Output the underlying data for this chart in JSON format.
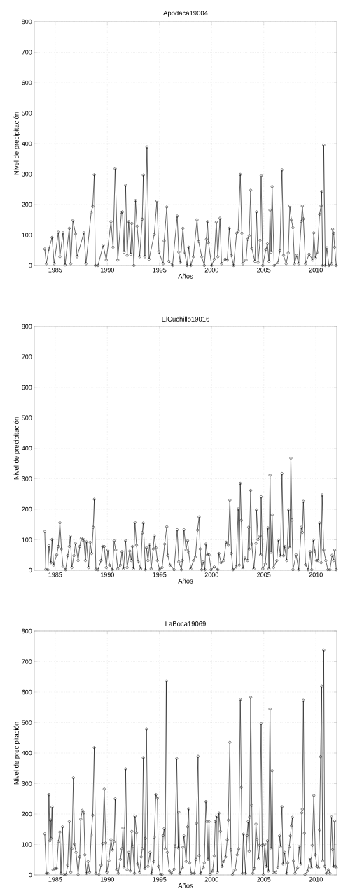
{
  "chart_data": [
    {
      "type": "line",
      "title": "Apodaca19004",
      "xlabel": "Años",
      "ylabel": "Nivel de precipitación",
      "color": "#000000",
      "marker": "circle",
      "line_style": "solid",
      "grid": true,
      "xlim": [
        1983,
        2012
      ],
      "ylim": [
        0,
        800
      ],
      "xticks": [
        1985,
        1990,
        1995,
        2000,
        2005,
        2010
      ],
      "yticks": [
        0,
        100,
        200,
        300,
        400,
        500,
        600,
        700,
        800
      ],
      "x": [
        1984.0,
        1984.15,
        1984.4,
        1984.7,
        1984.9,
        1985.3,
        1985.45,
        1985.75,
        1985.95,
        1986.35,
        1986.5,
        1986.7,
        1986.95,
        1987.1,
        1987.75,
        1987.95,
        1988.45,
        1988.6,
        1988.75,
        1988.85,
        1989.1,
        1989.6,
        1989.9,
        1990.35,
        1990.55,
        1990.75,
        1991.0,
        1991.35,
        1991.45,
        1991.6,
        1991.75,
        1991.9,
        1992.05,
        1992.25,
        1992.35,
        1992.55,
        1992.7,
        1992.85,
        1993.1,
        1993.35,
        1993.45,
        1993.6,
        1993.8,
        1994.0,
        1994.5,
        1994.75,
        1994.95,
        1995.35,
        1995.45,
        1995.7,
        1995.9,
        1996.25,
        1996.7,
        1996.85,
        1997.0,
        1997.25,
        1997.4,
        1997.65,
        1997.8,
        1998.0,
        1998.25,
        1998.6,
        1998.75,
        1999.05,
        1999.3,
        1999.5,
        1999.6,
        1999.7,
        2000.0,
        2000.25,
        2000.45,
        2000.6,
        2000.8,
        2000.95,
        2001.3,
        2001.5,
        2001.7,
        2001.9,
        2002.1,
        2002.4,
        2002.55,
        2002.75,
        2002.9,
        2003.0,
        2003.3,
        2003.45,
        2003.6,
        2003.75,
        2003.85,
        2004.15,
        2004.3,
        2004.45,
        2004.65,
        2004.75,
        2004.9,
        2005.2,
        2005.35,
        2005.5,
        2005.6,
        2005.7,
        2005.8,
        2006.0,
        2006.35,
        2006.55,
        2006.75,
        2006.9,
        2007.15,
        2007.35,
        2007.5,
        2007.65,
        2007.8,
        2007.95,
        2008.15,
        2008.35,
        2008.6,
        2008.7,
        2008.8,
        2009.0,
        2009.35,
        2009.7,
        2009.8,
        2009.95,
        2010.15,
        2010.35,
        2010.5,
        2010.55,
        2010.65,
        2010.75,
        2010.9,
        2011.05,
        2011.25,
        2011.5,
        2011.6,
        2011.7,
        2011.8,
        2011.95
      ],
      "values": [
        54,
        6,
        54,
        92,
        6,
        109,
        29,
        107,
        2,
        122,
        6,
        148,
        104,
        29,
        107,
        6,
        173,
        194,
        298,
        0,
        0,
        66,
        18,
        144,
        60,
        318,
        18,
        174,
        176,
        44,
        263,
        33,
        144,
        37,
        138,
        0,
        213,
        129,
        29,
        152,
        297,
        29,
        389,
        21,
        102,
        211,
        44,
        6,
        81,
        192,
        14,
        0,
        162,
        44,
        10,
        122,
        44,
        0,
        60,
        0,
        29,
        150,
        79,
        29,
        0,
        86,
        144,
        75,
        0,
        21,
        142,
        29,
        155,
        6,
        21,
        18,
        122,
        33,
        0,
        106,
        113,
        299,
        106,
        6,
        18,
        86,
        98,
        247,
        56,
        14,
        176,
        10,
        83,
        295,
        0,
        52,
        71,
        14,
        182,
        44,
        259,
        0,
        10,
        48,
        314,
        33,
        6,
        41,
        195,
        150,
        124,
        6,
        33,
        6,
        144,
        195,
        153,
        6,
        37,
        18,
        107,
        25,
        44,
        168,
        196,
        243,
        0,
        395,
        0,
        58,
        0,
        6,
        119,
        106,
        60,
        0
      ]
    },
    {
      "type": "line",
      "title": "ElCuchillo19016",
      "xlabel": "Años",
      "ylabel": "Nivel de precipitación",
      "color": "#000000",
      "marker": "circle",
      "line_style": "solid",
      "grid": true,
      "xlim": [
        1983,
        2012
      ],
      "ylim": [
        0,
        800
      ],
      "xticks": [
        1985,
        1990,
        1995,
        2000,
        2005,
        2010
      ],
      "yticks": [
        0,
        100,
        200,
        300,
        400,
        500,
        600,
        700,
        800
      ],
      "x": [
        1984.0,
        1984.1,
        1984.3,
        1984.4,
        1984.6,
        1984.7,
        1984.85,
        1985.15,
        1985.3,
        1985.45,
        1985.6,
        1985.75,
        1986.0,
        1986.2,
        1986.35,
        1986.45,
        1986.6,
        1986.8,
        1986.95,
        1987.2,
        1987.35,
        1987.5,
        1987.6,
        1987.75,
        1987.9,
        1988.0,
        1988.2,
        1988.35,
        1988.5,
        1988.65,
        1988.75,
        1988.9,
        1989.1,
        1989.4,
        1989.55,
        1989.7,
        1989.9,
        1990.05,
        1990.2,
        1990.5,
        1990.65,
        1990.8,
        1991.0,
        1991.25,
        1991.4,
        1991.55,
        1991.75,
        1991.9,
        1992.15,
        1992.3,
        1992.4,
        1992.5,
        1992.65,
        1992.8,
        1992.95,
        1993.2,
        1993.35,
        1993.45,
        1993.65,
        1993.75,
        1993.9,
        1994.05,
        1994.2,
        1994.4,
        1994.5,
        1994.65,
        1994.8,
        1995.0,
        1995.25,
        1995.5,
        1995.7,
        1995.8,
        1996.0,
        1996.4,
        1996.7,
        1996.85,
        1997.1,
        1997.2,
        1997.35,
        1997.55,
        1997.7,
        1997.8,
        1998.0,
        1998.25,
        1998.45,
        1998.65,
        1998.8,
        1998.9,
        1999.05,
        1999.2,
        1999.35,
        1999.45,
        1999.6,
        1999.75,
        1999.95,
        2000.25,
        2000.6,
        2000.7,
        2000.9,
        2001.15,
        2001.4,
        2001.6,
        2001.75,
        2001.9,
        2002.05,
        2002.35,
        2002.55,
        2002.65,
        2002.75,
        2002.85,
        2003.0,
        2003.2,
        2003.45,
        2003.55,
        2003.6,
        2003.75,
        2003.85,
        2004.05,
        2004.25,
        2004.3,
        2004.45,
        2004.65,
        2004.7,
        2004.75,
        2004.9,
        2005.15,
        2005.4,
        2005.5,
        2005.6,
        2005.7,
        2005.8,
        2005.95,
        2006.25,
        2006.4,
        2006.6,
        2006.75,
        2006.9,
        2007.0,
        2007.2,
        2007.4,
        2007.5,
        2007.6,
        2007.7,
        2007.8,
        2008.1,
        2008.35,
        2008.6,
        2008.7,
        2008.8,
        2009.0,
        2009.25,
        2009.45,
        2009.6,
        2009.75,
        2009.9,
        2010.05,
        2010.2,
        2010.35,
        2010.5,
        2010.6,
        2010.75,
        2010.95,
        2011.15,
        2011.35,
        2011.55,
        2011.7,
        2011.8,
        2011.95
      ],
      "values": [
        127,
        3,
        2,
        80,
        25,
        101,
        17,
        51,
        78,
        156,
        70,
        13,
        2,
        48,
        78,
        112,
        9,
        48,
        88,
        32,
        78,
        105,
        100,
        100,
        32,
        93,
        9,
        92,
        55,
        141,
        233,
        3,
        2,
        32,
        78,
        78,
        9,
        66,
        17,
        2,
        97,
        67,
        5,
        17,
        61,
        5,
        97,
        9,
        63,
        32,
        78,
        5,
        157,
        82,
        28,
        5,
        123,
        155,
        2,
        74,
        32,
        84,
        5,
        70,
        113,
        74,
        32,
        2,
        9,
        86,
        143,
        49,
        17,
        2,
        133,
        28,
        2,
        32,
        133,
        67,
        97,
        59,
        5,
        32,
        44,
        132,
        175,
        70,
        2,
        28,
        2,
        86,
        51,
        51,
        2,
        11,
        2,
        55,
        25,
        32,
        92,
        82,
        230,
        55,
        2,
        11,
        201,
        17,
        285,
        164,
        5,
        40,
        32,
        141,
        70,
        262,
        86,
        5,
        88,
        198,
        101,
        113,
        51,
        241,
        5,
        21,
        139,
        5,
        312,
        59,
        182,
        9,
        32,
        99,
        48,
        317,
        48,
        78,
        32,
        198,
        74,
        368,
        165,
        2,
        51,
        2,
        141,
        124,
        226,
        18,
        2,
        61,
        2,
        99,
        63,
        32,
        32,
        155,
        25,
        247,
        67,
        32,
        2,
        2,
        49,
        32,
        66,
        2
      ]
    },
    {
      "type": "line",
      "title": "LaBoca19069",
      "xlabel": "Años",
      "ylabel": "Nivel de precipitación",
      "color": "#000000",
      "marker": "circle",
      "line_style": "solid",
      "grid": true,
      "xlim": [
        1983,
        2012
      ],
      "ylim": [
        0,
        800
      ],
      "xticks": [
        1985,
        1990,
        1995,
        2000,
        2005,
        2010
      ],
      "yticks": [
        0,
        100,
        200,
        300,
        400,
        500,
        600,
        700,
        800
      ],
      "x": [
        1984.0,
        1984.15,
        1984.3,
        1984.4,
        1984.5,
        1984.55,
        1984.6,
        1984.7,
        1984.8,
        1985.0,
        1985.15,
        1985.3,
        1985.45,
        1985.55,
        1985.7,
        1985.85,
        1986.05,
        1986.2,
        1986.35,
        1986.5,
        1986.6,
        1986.75,
        1986.85,
        1987.0,
        1987.2,
        1987.35,
        1987.45,
        1987.6,
        1987.75,
        1987.85,
        1988.0,
        1988.15,
        1988.3,
        1988.45,
        1988.6,
        1988.75,
        1988.9,
        1989.2,
        1989.4,
        1989.55,
        1989.7,
        1989.85,
        1989.95,
        1990.15,
        1990.35,
        1990.5,
        1990.65,
        1990.75,
        1990.9,
        1991.05,
        1991.25,
        1991.4,
        1991.5,
        1991.6,
        1991.75,
        1991.9,
        1992.05,
        1992.2,
        1992.35,
        1992.45,
        1992.6,
        1992.65,
        1992.8,
        1992.9,
        1993.1,
        1993.25,
        1993.35,
        1993.45,
        1993.6,
        1993.65,
        1993.75,
        1993.9,
        1994.1,
        1994.25,
        1994.45,
        1994.5,
        1994.65,
        1994.8,
        1994.9,
        1995.1,
        1995.25,
        1995.35,
        1995.45,
        1995.55,
        1995.65,
        1995.75,
        1995.95,
        1996.15,
        1996.4,
        1996.5,
        1996.65,
        1996.8,
        1996.85,
        1996.95,
        1997.2,
        1997.25,
        1997.35,
        1997.55,
        1997.7,
        1997.8,
        1997.9,
        1998.05,
        1998.35,
        1998.5,
        1998.55,
        1998.7,
        1998.8,
        1998.95,
        1999.2,
        1999.3,
        1999.45,
        1999.55,
        1999.65,
        1999.75,
        1999.85,
        2000.1,
        2000.25,
        2000.35,
        2000.5,
        2000.55,
        2000.7,
        2000.85,
        2001.0,
        2001.15,
        2001.35,
        2001.5,
        2001.6,
        2001.75,
        2001.85,
        2002.0,
        2002.25,
        2002.45,
        2002.6,
        2002.75,
        2002.85,
        2002.95,
        2003.05,
        2003.25,
        2003.4,
        2003.5,
        2003.6,
        2003.65,
        2003.75,
        2003.85,
        2003.95,
        2004.1,
        2004.25,
        2004.35,
        2004.5,
        2004.6,
        2004.75,
        2004.85,
        2004.95,
        2005.1,
        2005.25,
        2005.35,
        2005.45,
        2005.6,
        2005.7,
        2005.8,
        2005.9,
        2006.15,
        2006.35,
        2006.5,
        2006.6,
        2006.75,
        2006.85,
        2007.0,
        2007.2,
        2007.3,
        2007.45,
        2007.55,
        2007.65,
        2007.75,
        2007.85,
        2008.0,
        2008.25,
        2008.4,
        2008.55,
        2008.65,
        2008.7,
        2008.8,
        2008.9,
        2008.95,
        2009.2,
        2009.45,
        2009.55,
        2009.65,
        2009.8,
        2009.95,
        2010.1,
        2010.25,
        2010.35,
        2010.45,
        2010.55,
        2010.65,
        2010.75,
        2010.85,
        2011.0,
        2011.2,
        2011.35,
        2011.5,
        2011.6,
        2011.7,
        2011.8,
        2011.87,
        2011.95
      ],
      "values": [
        135,
        5,
        5,
        264,
        112,
        180,
        120,
        223,
        17,
        21,
        21,
        109,
        141,
        5,
        158,
        2,
        2,
        32,
        175,
        9,
        86,
        319,
        101,
        74,
        2,
        59,
        183,
        212,
        204,
        66,
        5,
        44,
        9,
        131,
        196,
        418,
        5,
        2,
        32,
        103,
        282,
        105,
        9,
        47,
        116,
        82,
        109,
        250,
        17,
        5,
        51,
        86,
        154,
        24,
        348,
        17,
        74,
        13,
        143,
        93,
        5,
        193,
        139,
        36,
        9,
        59,
        86,
        385,
        21,
        120,
        479,
        28,
        74,
        5,
        44,
        124,
        264,
        252,
        28,
        2,
        2,
        129,
        152,
        86,
        637,
        74,
        13,
        5,
        19,
        95,
        382,
        89,
        206,
        5,
        24,
        91,
        128,
        44,
        158,
        217,
        40,
        5,
        5,
        51,
        170,
        389,
        63,
        5,
        24,
        40,
        241,
        175,
        51,
        175,
        2,
        13,
        63,
        175,
        193,
        9,
        203,
        143,
        28,
        44,
        59,
        116,
        180,
        435,
        82,
        2,
        17,
        66,
        86,
        576,
        288,
        5,
        134,
        5,
        129,
        175,
        78,
        190,
        583,
        229,
        5,
        21,
        167,
        116,
        53,
        97,
        497,
        97,
        2,
        101,
        28,
        112,
        13,
        545,
        86,
        342,
        9,
        9,
        24,
        128,
        93,
        224,
        36,
        74,
        5,
        40,
        93,
        128,
        162,
        189,
        47,
        5,
        24,
        93,
        36,
        204,
        216,
        573,
        137,
        2,
        13,
        55,
        24,
        97,
        261,
        66,
        28,
        24,
        148,
        388,
        619,
        47,
        738,
        28,
        5,
        17,
        5,
        190,
        83,
        28,
        177,
        28,
        24
      ]
    }
  ]
}
